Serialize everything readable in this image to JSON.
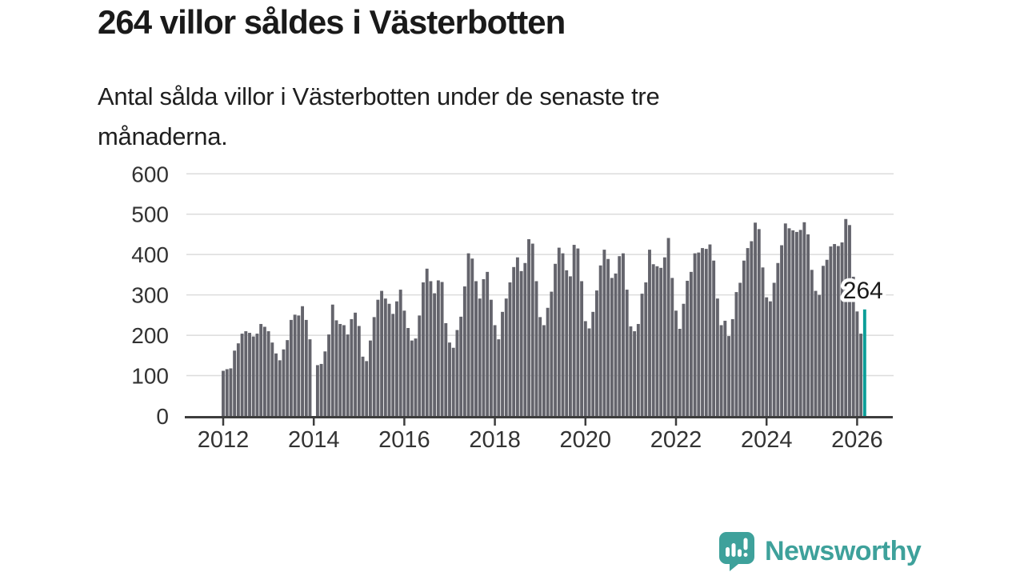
{
  "header": {
    "title": "264 villor såldes i Västerbotten",
    "subtitle_line1": "Antal sålda villor i Västerbotten under de senaste tre",
    "subtitle_line2": "månaderna."
  },
  "footer": {
    "brand_name": "Newsworthy"
  },
  "colors": {
    "bar": "#64646c",
    "highlight": "#0b9e98",
    "grid": "#dcdcdc",
    "axis": "#3d3d3d",
    "axis_label": "#333333",
    "text": "#1a1a1a",
    "brand": "#3ea19b"
  },
  "chart_data": {
    "type": "bar",
    "title": "264 villor såldes i Västerbotten",
    "x_unit": "month",
    "x_start": "2012-01",
    "x_end": "2026-03",
    "ylim": [
      0,
      620
    ],
    "grid": true,
    "legend": "none",
    "yticks": [
      0,
      100,
      200,
      300,
      400,
      500,
      600
    ],
    "xticks": [
      "2012",
      "2014",
      "2016",
      "2018",
      "2020",
      "2022",
      "2024",
      "2026"
    ],
    "annotation": {
      "text": "264",
      "target": "last-bar"
    },
    "highlight_last": true,
    "series": [
      {
        "name": "Antal sålda villor",
        "values": [
          112,
          116,
          118,
          162,
          180,
          204,
          210,
          206,
          197,
          204,
          228,
          221,
          210,
          182,
          155,
          138,
          165,
          188,
          238,
          251,
          249,
          272,
          238,
          190,
          0,
          126,
          129,
          160,
          202,
          276,
          237,
          228,
          225,
          202,
          240,
          256,
          223,
          147,
          136,
          187,
          245,
          288,
          310,
          291,
          278,
          253,
          284,
          313,
          261,
          218,
          187,
          192,
          249,
          331,
          365,
          334,
          304,
          336,
          332,
          230,
          182,
          169,
          213,
          246,
          321,
          403,
          390,
          334,
          291,
          339,
          357,
          288,
          225,
          190,
          258,
          291,
          331,
          369,
          393,
          359,
          379,
          438,
          427,
          334,
          245,
          225,
          268,
          308,
          377,
          417,
          403,
          361,
          346,
          424,
          415,
          334,
          235,
          217,
          258,
          311,
          373,
          412,
          389,
          342,
          353,
          396,
          403,
          313,
          222,
          210,
          228,
          303,
          331,
          412,
          376,
          371,
          367,
          393,
          441,
          342,
          261,
          216,
          278,
          335,
          357,
          403,
          405,
          416,
          414,
          425,
          385,
          291,
          225,
          236,
          198,
          240,
          307,
          330,
          385,
          416,
          433,
          479,
          463,
          368,
          294,
          284,
          330,
          379,
          423,
          477,
          465,
          460,
          456,
          461,
          480,
          450,
          362,
          310,
          300,
          372,
          387,
          420,
          426,
          421,
          430,
          488,
          473,
          345,
          259,
          204,
          264
        ]
      }
    ]
  }
}
